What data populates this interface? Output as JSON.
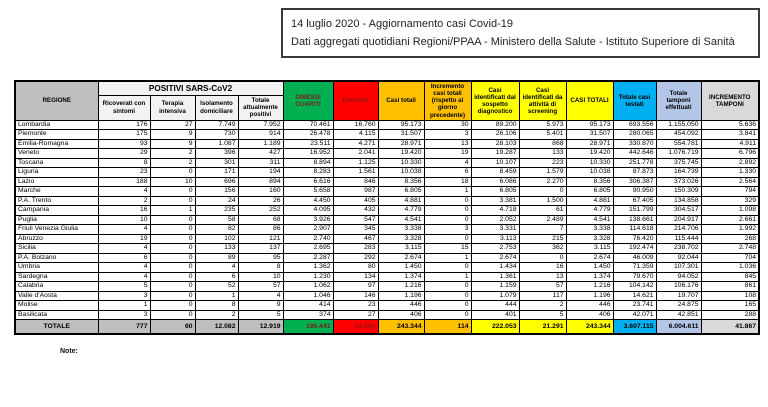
{
  "title_box": {
    "line1": "14 luglio 2020 - Aggiornamento casi Covid-19",
    "line2": "Dati aggregati quotidiani Regioni/PPAA - Ministero della Salute - Istituto Superiore di Sanità"
  },
  "note_label": "Note:",
  "colors": {
    "header_gray": "#BFBFBF",
    "green": "#00B050",
    "red": "#FF0000",
    "amber": "#FFC000",
    "yellow": "#FFFF00",
    "cyan": "#00B0F0",
    "lavender": "#B4C6E7",
    "light_gray": "#D9D9D9"
  },
  "table": {
    "headers": {
      "region": "REGIONE",
      "positivi_group": "POSITIVI SARS-CoV2",
      "ricoverati": "Ricoverati con sintomi",
      "terapia": "Terapia intensiva",
      "isolamento": "Isolamento domiciliare",
      "tot_positivi": "Totale attualmente positivi",
      "dimessi": "DIMESSI GUARITI",
      "deceduti": "Deceduti",
      "casi_totali": "Casi totali",
      "incremento_casi": "Incremento casi totali (rispetto al giorno precedente)",
      "sospetto": "Casi identificati dal sospetto diagnostico",
      "screening": "Casi identificati da attività di screening",
      "casi_totali_caps": "CASI TOTALI",
      "casi_testati": "Totale casi testati",
      "tamponi": "Totale tamponi effettuati",
      "incremento_tamponi": "INCREMENTO TAMPONI"
    },
    "rows": [
      {
        "region": "Lombardia",
        "values": [
          "176",
          "27",
          "7.749",
          "7.952",
          "70.461",
          "16.760",
          "95.173",
          "30",
          "89.200",
          "5.973",
          "95.173",
          "693.556",
          "1.155.050",
          "5.636"
        ]
      },
      {
        "region": "Piemonte",
        "values": [
          "175",
          "9",
          "730",
          "914",
          "26.478",
          "4.115",
          "31.507",
          "3",
          "26.106",
          "5.401",
          "31.507",
          "280.065",
          "454.092",
          "3.841"
        ]
      },
      {
        "region": "Emilia-Romagna",
        "values": [
          "93",
          "9",
          "1.087",
          "1.189",
          "23.511",
          "4.271",
          "28.971",
          "13",
          "28.103",
          "868",
          "28.971",
          "330.870",
          "554.781",
          "4.911"
        ]
      },
      {
        "region": "Veneto",
        "values": [
          "29",
          "2",
          "396",
          "427",
          "16.952",
          "2.041",
          "19.420",
          "19",
          "19.287",
          "133",
          "19.420",
          "442.646",
          "1.076.719",
          "6.796"
        ]
      },
      {
        "region": "Toscana",
        "values": [
          "8",
          "2",
          "301",
          "311",
          "8.894",
          "1.125",
          "10.330",
          "4",
          "10.107",
          "223",
          "10.330",
          "251.778",
          "375.745",
          "2.892"
        ]
      },
      {
        "region": "Liguria",
        "values": [
          "23",
          "0",
          "171",
          "194",
          "8.283",
          "1.561",
          "10.038",
          "6",
          "8.459",
          "1.579",
          "10.038",
          "87.873",
          "164.739",
          "1.330"
        ]
      },
      {
        "region": "Lazio",
        "values": [
          "188",
          "10",
          "696",
          "894",
          "6.616",
          "846",
          "8.356",
          "18",
          "6.086",
          "2.270",
          "8.356",
          "306.387",
          "373.026",
          "2.564"
        ]
      },
      {
        "region": "Marche",
        "values": [
          "4",
          "0",
          "156",
          "160",
          "5.658",
          "987",
          "6.805",
          "1",
          "6.805",
          "0",
          "6.805",
          "90.950",
          "150.309",
          "794"
        ]
      },
      {
        "region": "P.A. Trento",
        "values": [
          "2",
          "0",
          "24",
          "26",
          "4.450",
          "405",
          "4.881",
          "0",
          "3.381",
          "1.500",
          "4.881",
          "67.405",
          "134.858",
          "329"
        ]
      },
      {
        "region": "Campania",
        "values": [
          "16",
          "1",
          "235",
          "252",
          "4.095",
          "432",
          "4.779",
          "0",
          "4.718",
          "61",
          "4.779",
          "151.799",
          "304.517",
          "1.098"
        ]
      },
      {
        "region": "Puglia",
        "values": [
          "10",
          "0",
          "58",
          "68",
          "3.926",
          "547",
          "4.541",
          "0",
          "2.052",
          "2.489",
          "4.541",
          "138.661",
          "204.917",
          "2.661"
        ]
      },
      {
        "region": "Friuli Venezia Giulia",
        "values": [
          "4",
          "0",
          "82",
          "86",
          "2.907",
          "345",
          "3.338",
          "3",
          "3.331",
          "7",
          "3.338",
          "114.618",
          "214.706",
          "1.992"
        ]
      },
      {
        "region": "Abruzzo",
        "values": [
          "19",
          "0",
          "102",
          "121",
          "2.740",
          "467",
          "3.328",
          "0",
          "3.113",
          "215",
          "3.328",
          "76.420",
          "115.444",
          "268"
        ]
      },
      {
        "region": "Sicilia",
        "values": [
          "4",
          "0",
          "133",
          "137",
          "2.695",
          "283",
          "3.115",
          "15",
          "2.753",
          "362",
          "3.115",
          "192.474",
          "238.702",
          "2.748"
        ]
      },
      {
        "region": "P.A. Bolzano",
        "values": [
          "6",
          "0",
          "89",
          "95",
          "2.287",
          "292",
          "2.674",
          "1",
          "2.674",
          "0",
          "2.674",
          "46.009",
          "92.044",
          "704"
        ]
      },
      {
        "region": "Umbria",
        "values": [
          "4",
          "0",
          "4",
          "8",
          "1.362",
          "80",
          "1.450",
          "0",
          "1.434",
          "16",
          "1.450",
          "71.359",
          "107.301",
          "1.036"
        ]
      },
      {
        "region": "Sardegna",
        "values": [
          "4",
          "0",
          "6",
          "10",
          "1.230",
          "134",
          "1.374",
          "1",
          "1.361",
          "13",
          "1.374",
          "79.670",
          "94.052",
          "845"
        ]
      },
      {
        "region": "Calabria",
        "values": [
          "5",
          "0",
          "52",
          "57",
          "1.062",
          "97",
          "1.216",
          "0",
          "1.159",
          "57",
          "1.216",
          "104.142",
          "106.176",
          "861"
        ]
      },
      {
        "region": "Valle d'Aosta",
        "values": [
          "3",
          "0",
          "1",
          "4",
          "1.046",
          "146",
          "1.196",
          "0",
          "1.079",
          "117",
          "1.196",
          "14.621",
          "19.707",
          "108"
        ]
      },
      {
        "region": "Molise",
        "values": [
          "1",
          "0",
          "8",
          "9",
          "414",
          "23",
          "446",
          "0",
          "444",
          "2",
          "446",
          "23.741",
          "24.875",
          "165"
        ]
      },
      {
        "region": "Basilicata",
        "values": [
          "3",
          "0",
          "2",
          "5",
          "374",
          "27",
          "406",
          "0",
          "401",
          "5",
          "406",
          "42.071",
          "42.851",
          "288"
        ]
      }
    ],
    "total_row": {
      "label": "TOTALE",
      "values": [
        "777",
        "60",
        "12.082",
        "12.919",
        "195.441",
        "34.984",
        "243.344",
        "114",
        "222.053",
        "21.291",
        "243.344",
        "3.607.115",
        "6.004.611",
        "41.867"
      ]
    }
  }
}
